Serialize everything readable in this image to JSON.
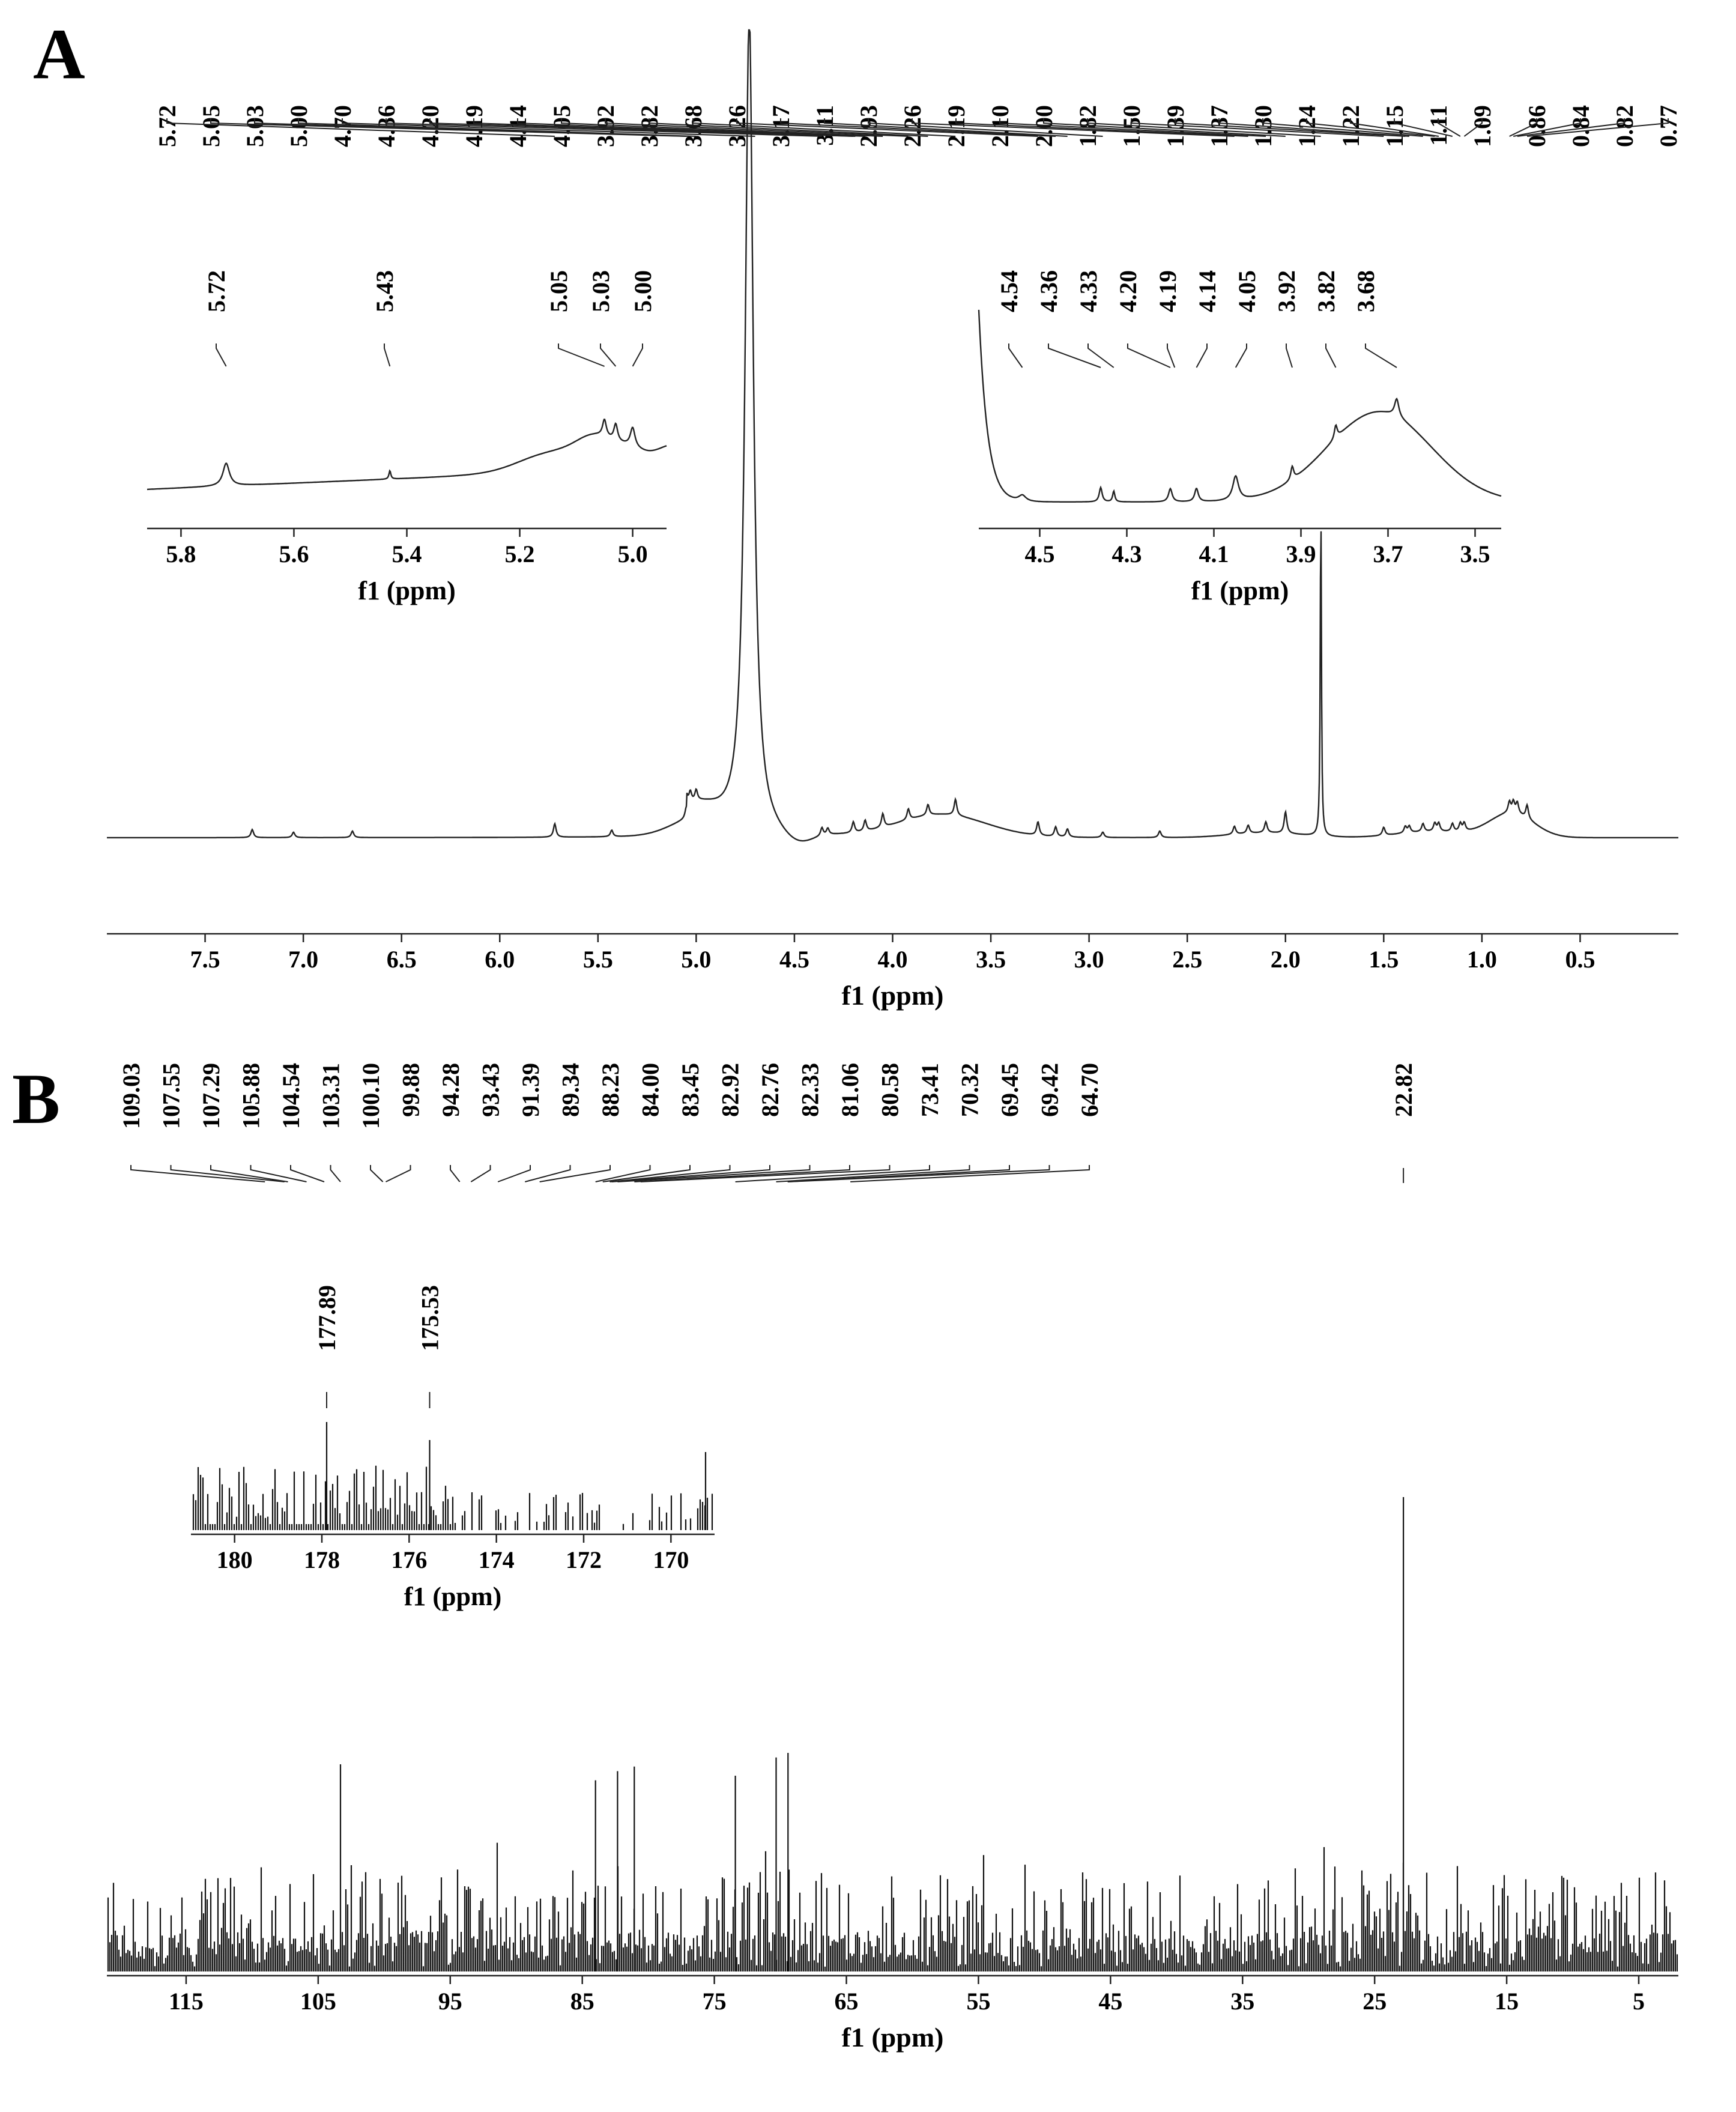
{
  "chart_data": [
    {
      "type": "line",
      "panel": "A",
      "xlabel": "f1 (ppm)",
      "xlim": [
        8.0,
        0.0
      ],
      "xticks": [
        7.5,
        7.0,
        6.5,
        6.0,
        5.5,
        5.0,
        4.5,
        4.0,
        3.5,
        3.0,
        2.5,
        2.0,
        1.5,
        1.0,
        0.5
      ],
      "xtick_labels": [
        "7.5",
        "7.0",
        "6.5",
        "6.0",
        "5.5",
        "5.0",
        "4.5",
        "4.0",
        "3.5",
        "3.0",
        "2.5",
        "2.0",
        "1.5",
        "1.0",
        "0.5"
      ],
      "peak_labels": [
        "5.72",
        "5.05",
        "5.03",
        "5.00",
        "4.70",
        "4.36",
        "4.20",
        "4.19",
        "4.14",
        "4.05",
        "3.92",
        "3.82",
        "3.68",
        "3.26",
        "3.17",
        "3.11",
        "2.93",
        "2.26",
        "2.19",
        "2.10",
        "2.00",
        "1.82",
        "1.50",
        "1.39",
        "1.37",
        "1.30",
        "1.24",
        "1.22",
        "1.15",
        "1.11",
        "1.09",
        "0.86",
        "0.84",
        "0.82",
        "0.77"
      ],
      "peaks": [
        {
          "x": 7.26,
          "y": 0.015
        },
        {
          "x": 7.05,
          "y": 0.01
        },
        {
          "x": 6.75,
          "y": 0.012
        },
        {
          "x": 5.72,
          "y": 0.025
        },
        {
          "x": 5.43,
          "y": 0.012
        },
        {
          "x": 5.05,
          "y": 0.02
        },
        {
          "x": 5.03,
          "y": 0.02
        },
        {
          "x": 5.0,
          "y": 0.02
        },
        {
          "x": 4.7,
          "y": 1.0
        },
        {
          "x": 4.36,
          "y": 0.015
        },
        {
          "x": 4.33,
          "y": 0.012
        },
        {
          "x": 4.2,
          "y": 0.02
        },
        {
          "x": 4.14,
          "y": 0.02
        },
        {
          "x": 4.05,
          "y": 0.025
        },
        {
          "x": 3.92,
          "y": 0.02
        },
        {
          "x": 3.82,
          "y": 0.02
        },
        {
          "x": 3.68,
          "y": 0.03
        },
        {
          "x": 3.26,
          "y": 0.025
        },
        {
          "x": 3.17,
          "y": 0.018
        },
        {
          "x": 3.11,
          "y": 0.015
        },
        {
          "x": 2.93,
          "y": 0.01
        },
        {
          "x": 2.64,
          "y": 0.012
        },
        {
          "x": 2.26,
          "y": 0.015
        },
        {
          "x": 2.19,
          "y": 0.015
        },
        {
          "x": 2.1,
          "y": 0.02
        },
        {
          "x": 2.0,
          "y": 0.04
        },
        {
          "x": 1.82,
          "y": 0.5
        },
        {
          "x": 1.5,
          "y": 0.015
        },
        {
          "x": 1.39,
          "y": 0.012
        },
        {
          "x": 1.37,
          "y": 0.012
        },
        {
          "x": 1.3,
          "y": 0.015
        },
        {
          "x": 1.24,
          "y": 0.015
        },
        {
          "x": 1.22,
          "y": 0.015
        },
        {
          "x": 1.15,
          "y": 0.015
        },
        {
          "x": 1.11,
          "y": 0.015
        },
        {
          "x": 1.09,
          "y": 0.015
        },
        {
          "x": 0.86,
          "y": 0.02
        },
        {
          "x": 0.84,
          "y": 0.02
        },
        {
          "x": 0.82,
          "y": 0.02
        },
        {
          "x": 0.77,
          "y": 0.025
        }
      ],
      "insets": [
        {
          "xlabel": "f1 (ppm)",
          "xlim": [
            5.86,
            4.94
          ],
          "xticks": [
            5.8,
            5.6,
            5.4,
            5.2,
            5.0
          ],
          "xtick_labels": [
            "5.8",
            "5.6",
            "5.4",
            "5.2",
            "5.0"
          ],
          "peak_labels": [
            "5.72",
            "5.43",
            "5.05",
            "5.03",
            "5.00"
          ]
        },
        {
          "xlabel": "f1 (ppm)",
          "xlim": [
            4.64,
            3.44
          ],
          "xticks": [
            4.5,
            4.3,
            4.1,
            3.9,
            3.7,
            3.5
          ],
          "xtick_labels": [
            "4.5",
            "4.3",
            "4.1",
            "3.9",
            "3.7",
            "3.5"
          ],
          "peak_labels": [
            "4.54",
            "4.36",
            "4.33",
            "4.20",
            "4.19",
            "4.14",
            "4.05",
            "3.92",
            "3.82",
            "3.68"
          ]
        }
      ]
    },
    {
      "type": "line",
      "panel": "B",
      "xlabel": "f1 (ppm)",
      "xlim": [
        121.0,
        2.0
      ],
      "xticks": [
        115,
        105,
        95,
        85,
        75,
        65,
        55,
        45,
        35,
        25,
        15,
        5
      ],
      "xtick_labels": [
        "115",
        "105",
        "95",
        "85",
        "75",
        "65",
        "55",
        "45",
        "35",
        "25",
        "15",
        "5"
      ],
      "peak_labels": [
        "109.03",
        "107.55",
        "107.29",
        "105.88",
        "104.54",
        "103.31",
        "100.10",
        "99.88",
        "94.28",
        "93.43",
        "91.39",
        "89.34",
        "88.23",
        "84.00",
        "83.45",
        "82.92",
        "82.76",
        "82.33",
        "81.06",
        "80.58",
        "73.41",
        "70.32",
        "69.45",
        "69.42",
        "64.70"
      ],
      "peak_labels_right": [
        "22.82"
      ],
      "peaks": [
        {
          "x": 22.82,
          "y": 1.0
        },
        {
          "x": 103.31,
          "y": 0.25
        },
        {
          "x": 81.06,
          "y": 0.24
        },
        {
          "x": 82.33,
          "y": 0.22
        },
        {
          "x": 69.42,
          "y": 0.3
        },
        {
          "x": 70.32,
          "y": 0.28
        },
        {
          "x": 73.41,
          "y": 0.2
        },
        {
          "x": 84.0,
          "y": 0.18
        }
      ],
      "inset": {
        "xlabel": "f1 (ppm)",
        "xlim": [
          181.0,
          169.0
        ],
        "xticks": [
          180,
          178,
          176,
          174,
          172,
          170
        ],
        "xtick_labels": [
          "180",
          "178",
          "176",
          "174",
          "172",
          "170"
        ],
        "peak_labels": [
          "177.89",
          "175.53"
        ]
      }
    }
  ],
  "panel_labels": {
    "a": "A",
    "b": "B"
  }
}
